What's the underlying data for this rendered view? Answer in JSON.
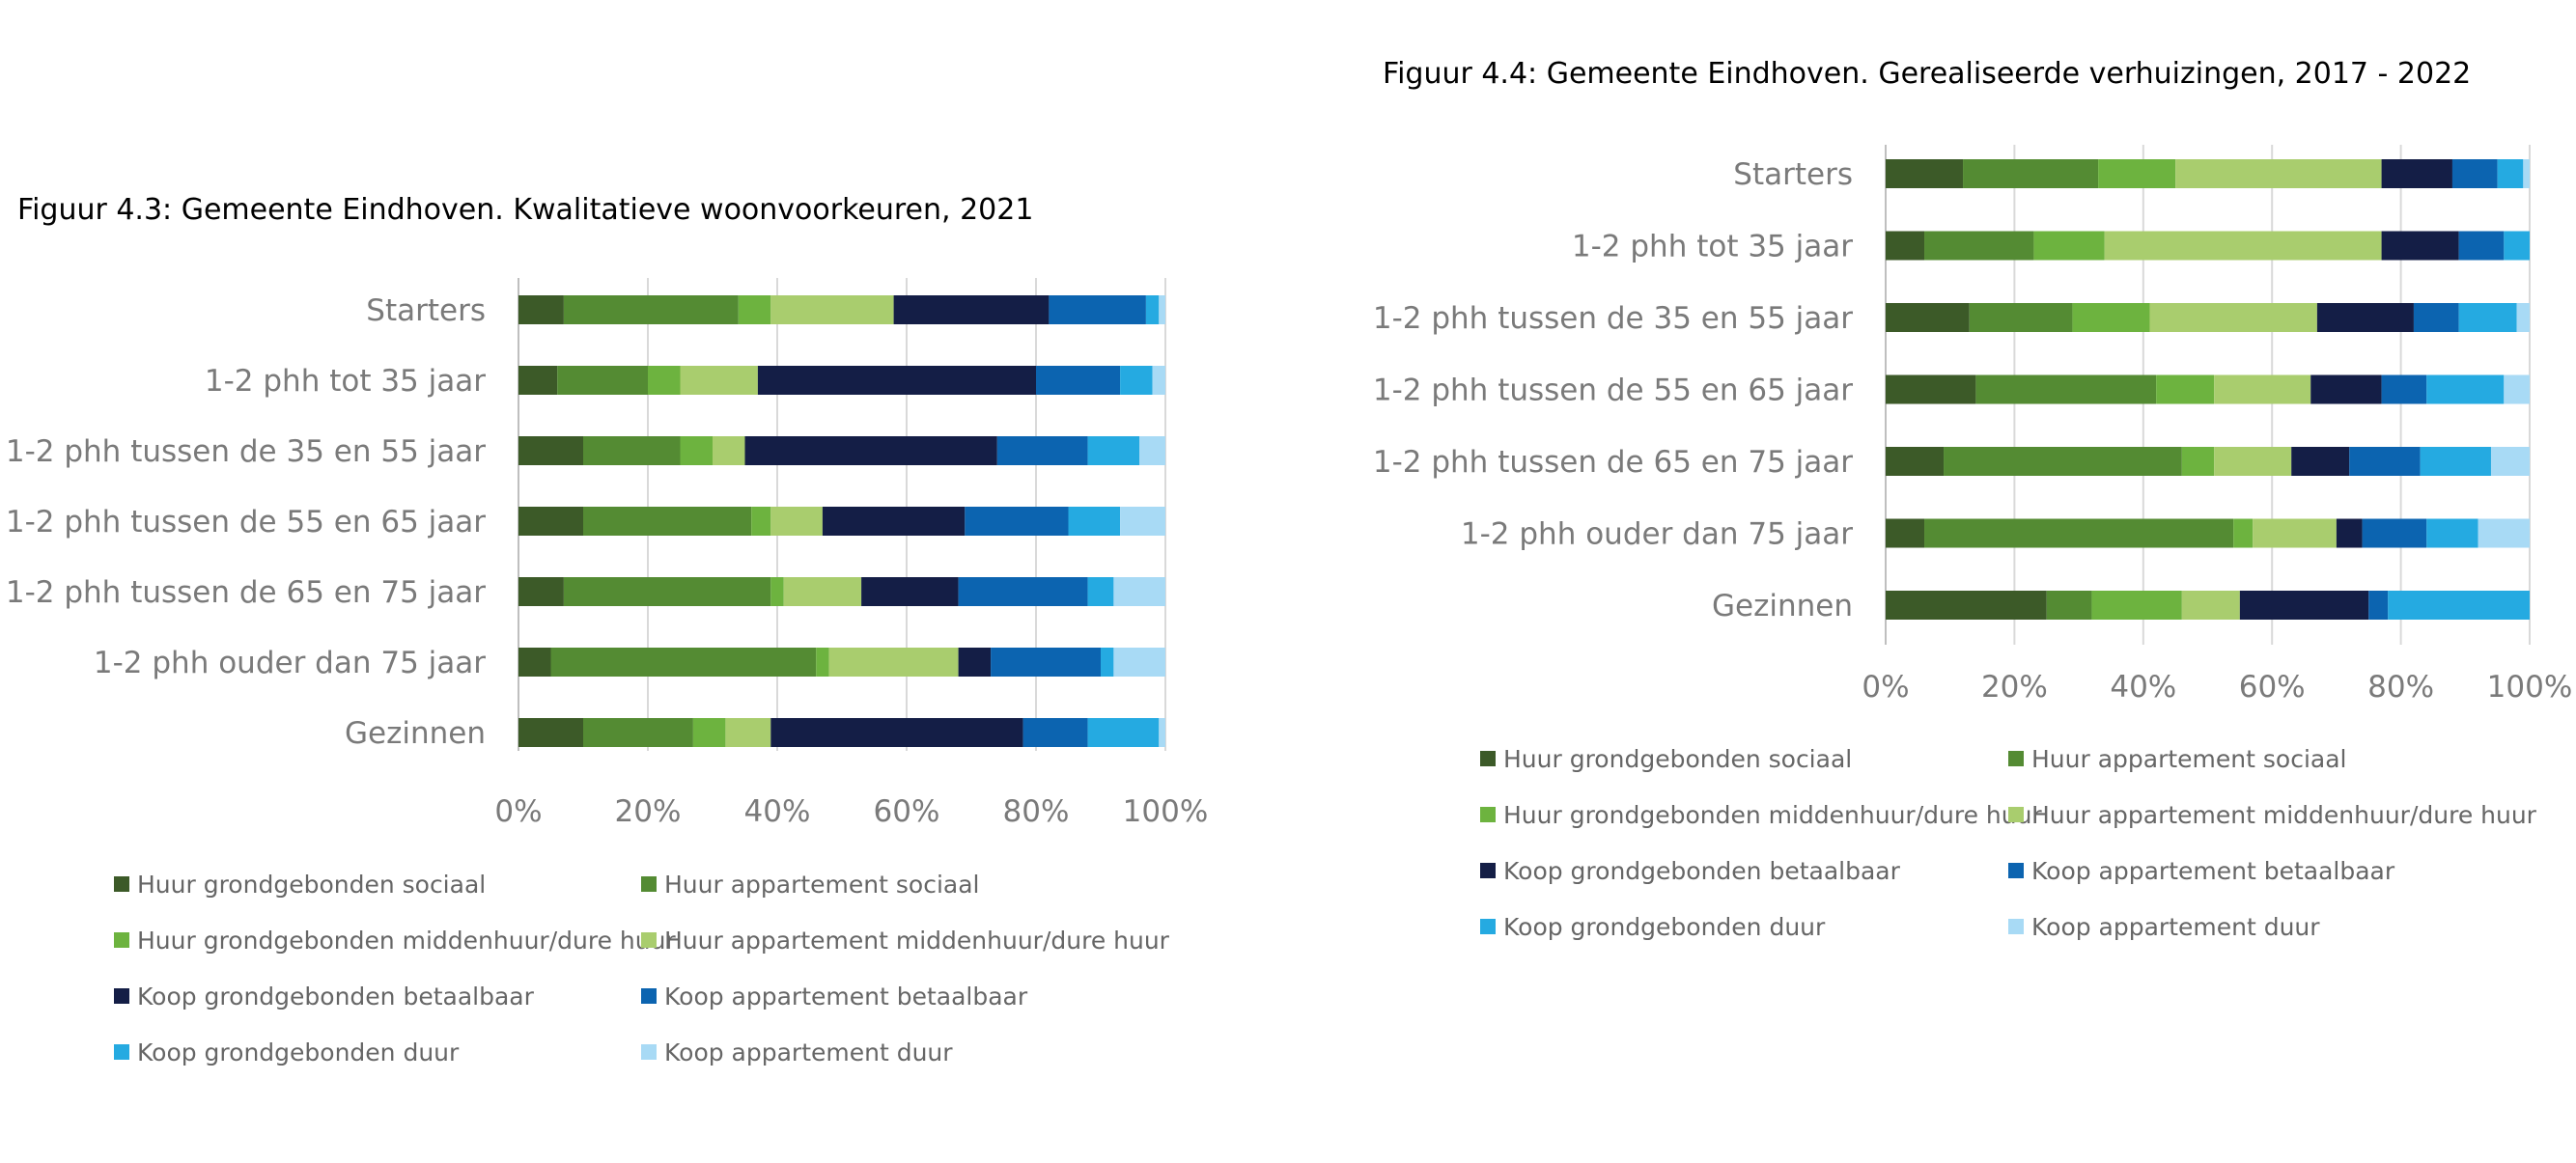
{
  "chart_data": [
    {
      "type": "bar",
      "orientation": "horizontal",
      "stacked": true,
      "percent": true,
      "title": "Figuur 4.3:  Gemeente Eindhoven. Kwalitatieve woonvoorkeuren, 2021",
      "categories": [
        "Starters",
        "1-2 phh tot 35 jaar",
        "1-2 phh tussen de 35 en 55 jaar",
        "1-2 phh tussen de 55 en 65 jaar",
        "1-2 phh tussen de 65 en 75 jaar",
        "1-2 phh ouder dan 75 jaar",
        "Gezinnen"
      ],
      "xlim": [
        0,
        100
      ],
      "xticks": [
        "0%",
        "20%",
        "40%",
        "60%",
        "80%",
        "100%"
      ],
      "grid": true,
      "legend_position": "bottom",
      "series": [
        {
          "name": "Huur grondgebonden sociaal",
          "color": "#3c5a28",
          "values": [
            7,
            6,
            10,
            10,
            7,
            5,
            10
          ]
        },
        {
          "name": "Huur appartement sociaal",
          "color": "#548b33",
          "values": [
            27,
            14,
            15,
            26,
            32,
            41,
            17
          ]
        },
        {
          "name": "Huur grondgebonden middenhuur/dure huur",
          "color": "#6db33f",
          "values": [
            5,
            5,
            5,
            3,
            2,
            2,
            5
          ]
        },
        {
          "name": "Huur appartement middenhuur/dure huur",
          "color": "#a9cd6e",
          "values": [
            19,
            12,
            5,
            8,
            12,
            20,
            7
          ]
        },
        {
          "name": "Koop grondgebonden betaalbaar",
          "color": "#141e46",
          "values": [
            24,
            43,
            39,
            22,
            15,
            5,
            39
          ]
        },
        {
          "name": "Koop appartement betaalbaar",
          "color": "#0c64b0",
          "values": [
            15,
            13,
            14,
            16,
            20,
            17,
            10
          ]
        },
        {
          "name": "Koop grondgebonden duur",
          "color": "#25aae1",
          "values": [
            2,
            5,
            8,
            8,
            4,
            2,
            11
          ]
        },
        {
          "name": "Koop appartement duur",
          "color": "#a8daf5",
          "values": [
            1,
            2,
            4,
            7,
            8,
            8,
            1
          ]
        }
      ]
    },
    {
      "type": "bar",
      "orientation": "horizontal",
      "stacked": true,
      "percent": true,
      "title": "Figuur 4.4:  Gemeente Eindhoven. Gerealiseerde verhuizingen, 2017 - 2022",
      "categories": [
        "Starters",
        "1-2 phh tot 35 jaar",
        "1-2 phh tussen de 35 en 55 jaar",
        "1-2 phh tussen de 55 en 65 jaar",
        "1-2 phh tussen de 65 en 75 jaar",
        "1-2 phh ouder dan 75 jaar",
        "Gezinnen"
      ],
      "xlim": [
        0,
        100
      ],
      "xticks": [
        "0%",
        "20%",
        "40%",
        "60%",
        "80%",
        "100%"
      ],
      "grid": true,
      "legend_position": "bottom",
      "series": [
        {
          "name": "Huur grondgebonden sociaal",
          "color": "#3c5a28",
          "values": [
            12,
            6,
            13,
            14,
            9,
            6,
            25
          ]
        },
        {
          "name": "Huur appartement sociaal",
          "color": "#548b33",
          "values": [
            21,
            17,
            16,
            28,
            37,
            48,
            7
          ]
        },
        {
          "name": "Huur grondgebonden middenhuur/dure huur",
          "color": "#6db33f",
          "values": [
            12,
            11,
            12,
            9,
            5,
            3,
            14
          ]
        },
        {
          "name": "Huur appartement middenhuur/dure huur",
          "color": "#a9cd6e",
          "values": [
            32,
            43,
            26,
            15,
            12,
            13,
            9
          ]
        },
        {
          "name": "Koop grondgebonden betaalbaar",
          "color": "#141e46",
          "values": [
            11,
            12,
            15,
            11,
            9,
            4,
            20
          ]
        },
        {
          "name": "Koop appartement betaalbaar",
          "color": "#0c64b0",
          "values": [
            7,
            7,
            7,
            7,
            11,
            10,
            3
          ]
        },
        {
          "name": "Koop grondgebonden duur",
          "color": "#25aae1",
          "values": [
            4,
            4,
            9,
            12,
            11,
            8,
            22
          ]
        },
        {
          "name": "Koop appartement duur",
          "color": "#a8daf5",
          "values": [
            1,
            0,
            2,
            4,
            6,
            8,
            0
          ]
        }
      ]
    }
  ]
}
